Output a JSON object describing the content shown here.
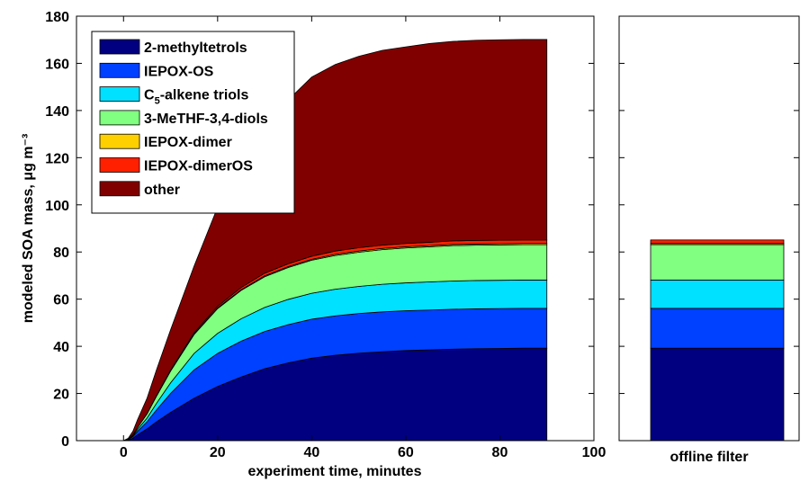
{
  "chart_data": {
    "type": "area",
    "stacked": true,
    "ylabel": "modeled SOA mass, μg m⁻³",
    "xlabel": "experiment time, minutes",
    "xlim": [
      -10,
      100
    ],
    "ylim": [
      0,
      180
    ],
    "xticks": [
      "0",
      "20",
      "40",
      "60",
      "80",
      "100"
    ],
    "yticks": [
      "0",
      "20",
      "40",
      "60",
      "80",
      "100",
      "120",
      "140",
      "160",
      "180"
    ],
    "grid": false,
    "legend_position": "top-left",
    "x": [
      0,
      1,
      2,
      3,
      5,
      7,
      10,
      15,
      20,
      25,
      30,
      35,
      40,
      45,
      50,
      55,
      60,
      65,
      70,
      75,
      80,
      85,
      90
    ],
    "series": [
      {
        "name": "2-methyltetrols",
        "color": "#000080",
        "values": [
          0,
          0.3,
          1,
          2.5,
          5,
          8,
          12,
          18,
          23,
          27,
          30.5,
          33,
          35,
          36.2,
          37.1,
          37.7,
          38.2,
          38.5,
          38.8,
          39,
          39.1,
          39.2,
          39.2
        ]
      },
      {
        "name": "IEPOX-OS",
        "color": "#0040ff",
        "values": [
          0,
          0.2,
          0.7,
          1.5,
          3,
          5,
          8,
          12,
          14,
          15.2,
          15.8,
          16.2,
          16.5,
          16.7,
          16.8,
          16.9,
          16.9,
          16.9,
          16.9,
          16.9,
          16.9,
          16.9,
          16.9
        ]
      },
      {
        "name": "C",
        "name_sub": "5",
        "name_suffix": "-alkene triols",
        "color": "#00e0ff",
        "values": [
          0,
          0.1,
          0.4,
          0.8,
          1.6,
          2.8,
          4.5,
          7,
          8.5,
          9.5,
          10.2,
          10.7,
          11,
          11.3,
          11.5,
          11.7,
          11.8,
          11.9,
          12,
          12,
          12,
          12,
          12
        ]
      },
      {
        "name": "3-MeTHF-3,4-diols",
        "color": "#80ff80",
        "values": [
          0,
          0.1,
          0.4,
          0.8,
          1.8,
          3,
          5,
          8,
          10.5,
          12,
          13,
          13.5,
          14,
          14.3,
          14.5,
          14.7,
          14.8,
          14.9,
          15,
          15,
          15,
          15,
          15
        ]
      },
      {
        "name": "IEPOX-dimer",
        "color": "#ffd000",
        "values": [
          0,
          0,
          0,
          0,
          0,
          0.1,
          0.1,
          0.2,
          0.3,
          0.3,
          0.4,
          0.4,
          0.4,
          0.5,
          0.5,
          0.5,
          0.5,
          0.5,
          0.5,
          0.5,
          0.5,
          0.5,
          0.5
        ]
      },
      {
        "name": "IEPOX-dimerOS",
        "color": "#ff2000",
        "values": [
          0,
          0,
          0,
          0,
          0.1,
          0.2,
          0.3,
          0.5,
          0.7,
          0.9,
          1.1,
          1.2,
          1.3,
          1.4,
          1.4,
          1.4,
          1.4,
          1.4,
          1.5,
          1.5,
          1.5,
          1.5,
          1.5
        ]
      },
      {
        "name": "other",
        "color": "#800000",
        "values": [
          0,
          0.3,
          1.5,
          3.4,
          6.5,
          10.9,
          17.1,
          28.3,
          42,
          53,
          62,
          69.5,
          76,
          79.1,
          81.2,
          82.6,
          83.4,
          84.3,
          84.6,
          84.9,
          85,
          85,
          85
        ]
      }
    ],
    "offline_filter": {
      "label": "offline filter",
      "values": [
        39.2,
        16.9,
        12,
        15,
        0.5,
        1.5,
        0
      ]
    }
  }
}
